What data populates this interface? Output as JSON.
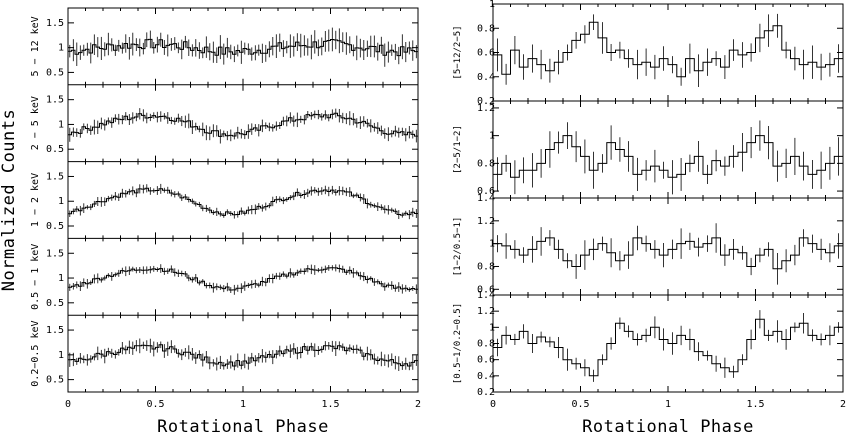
{
  "figure": {
    "left_ylabel": "Normalized Counts",
    "left_xlabel": "Rotational Phase",
    "right_xlabel": "Rotational Phase"
  },
  "chart_data": [
    {
      "type": "line",
      "panel_group": "left",
      "xlabel": "Rotational Phase",
      "ylabel": "Normalized Counts",
      "xlim": [
        0,
        2
      ],
      "xticks": [
        "0",
        "0.5",
        "1",
        "1.5",
        "2"
      ],
      "rows": [
        {
          "label": "5 − 12 keV",
          "ylim": [
            0.25,
            1.8
          ],
          "yticks": [
            "0.5",
            "1",
            "1.5"
          ],
          "base": 1.0,
          "amp": 0.12,
          "noise": 0.2
        },
        {
          "label": "2 − 5 keV",
          "ylim": [
            0.25,
            1.8
          ],
          "yticks": [
            "0.5",
            "1",
            "1.5"
          ],
          "base": 1.0,
          "amp": 0.3,
          "noise": 0.12
        },
        {
          "label": "1 − 2 keV",
          "ylim": [
            0.25,
            1.8
          ],
          "yticks": [
            "0.5",
            "1",
            "1.5"
          ],
          "base": 1.0,
          "amp": 0.38,
          "noise": 0.08
        },
        {
          "label": "0.5 − 1 keV",
          "ylim": [
            0.25,
            1.8
          ],
          "yticks": [
            "0.5",
            "1",
            "1.5"
          ],
          "base": 1.0,
          "amp": 0.32,
          "noise": 0.08
        },
        {
          "label": "0.2−0.5 keV",
          "ylim": [
            0.25,
            1.8
          ],
          "yticks": [
            "0.5",
            "1",
            "1.5"
          ],
          "base": 1.0,
          "amp": 0.25,
          "noise": 0.12
        }
      ]
    },
    {
      "type": "line",
      "panel_group": "right",
      "xlabel": "Rotational Phase",
      "xlim": [
        0,
        2
      ],
      "xticks": [
        "0",
        "0.5",
        "1",
        "1.5",
        "2"
      ],
      "rows": [
        {
          "label": "[5−12/2−5]",
          "ylim": [
            0.2,
            1.0
          ],
          "yticks": [
            "0.2",
            "0.4",
            "0.6",
            "0.8",
            "1"
          ],
          "values": [
            0.58,
            0.42,
            0.62,
            0.48,
            0.55,
            0.5,
            0.45,
            0.52,
            0.6,
            0.7,
            0.75,
            0.85,
            0.72,
            0.6,
            0.62,
            0.55,
            0.5,
            0.52,
            0.48,
            0.55,
            0.5,
            0.4,
            0.55,
            0.45,
            0.52,
            0.55,
            0.48,
            0.62,
            0.58,
            0.6,
            0.72,
            0.78,
            0.82,
            0.62,
            0.55,
            0.5,
            0.52,
            0.48,
            0.5,
            0.55
          ]
        },
        {
          "label": "[2−5/1−2]",
          "ylim": [
            0.55,
            1.25
          ],
          "yticks": [
            "0.6",
            "0.8",
            "1",
            "1.2"
          ],
          "values": [
            0.72,
            0.8,
            0.7,
            0.75,
            0.75,
            0.8,
            0.9,
            0.95,
            1.0,
            0.92,
            0.85,
            0.75,
            0.8,
            0.95,
            0.9,
            0.85,
            0.72,
            0.75,
            0.78,
            0.75,
            0.7,
            0.72,
            0.8,
            0.85,
            0.72,
            0.82,
            0.78,
            0.85,
            0.88,
            0.95,
            1.0,
            0.95,
            0.78,
            0.8,
            0.85,
            0.78,
            0.72,
            0.75,
            0.8,
            0.85
          ]
        },
        {
          "label": "[1−2/0.5−1]",
          "ylim": [
            0.55,
            1.4
          ],
          "yticks": [
            "0.6",
            "0.8",
            "1",
            "1.2",
            "1.4"
          ],
          "values": [
            1.0,
            0.98,
            0.95,
            0.9,
            0.95,
            1.02,
            1.05,
            0.95,
            0.85,
            0.8,
            0.9,
            0.95,
            1.0,
            0.92,
            0.85,
            0.9,
            1.05,
            1.0,
            0.95,
            0.9,
            0.95,
            1.0,
            1.02,
            0.97,
            1.0,
            1.05,
            0.9,
            0.95,
            0.92,
            0.8,
            0.9,
            0.95,
            0.78,
            0.85,
            0.9,
            1.05,
            1.0,
            0.95,
            0.92,
            0.98
          ]
        },
        {
          "label": "[0.5−1/0.2−0.5]",
          "ylim": [
            0.2,
            1.4
          ],
          "yticks": [
            "0.2",
            "0.4",
            "0.6",
            "0.8",
            "1",
            "1.2",
            "1.4"
          ],
          "values": [
            0.75,
            0.9,
            0.85,
            0.95,
            0.8,
            0.88,
            0.82,
            0.75,
            0.6,
            0.55,
            0.5,
            0.4,
            0.6,
            0.8,
            1.05,
            0.95,
            0.85,
            0.9,
            1.0,
            0.85,
            0.8,
            0.9,
            0.85,
            0.7,
            0.65,
            0.55,
            0.5,
            0.45,
            0.6,
            0.85,
            1.1,
            0.9,
            0.95,
            0.85,
            1.0,
            1.05,
            0.9,
            0.85,
            0.9,
            1.0
          ]
        }
      ]
    }
  ]
}
